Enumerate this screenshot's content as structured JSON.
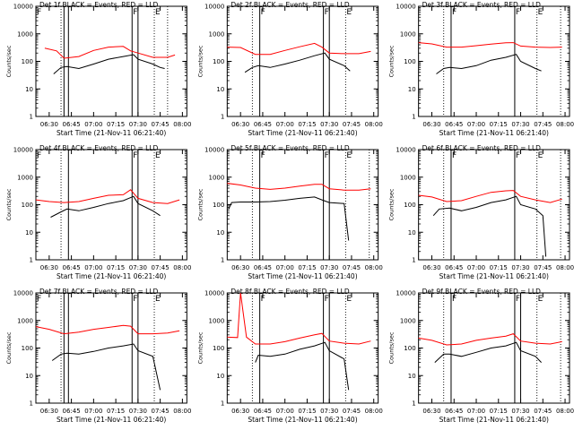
{
  "chart_data": [
    {
      "type": "line",
      "title": "Det 1f BLACK = Events, RED = LLD",
      "xlabel": "Start Time (21-Nov-11 06:21:40)",
      "ylabel": "Counts/sec",
      "xticks": [
        "06:30",
        "06:45",
        "07:00",
        "07:15",
        "07:30",
        "07:45",
        "08:00"
      ],
      "yticks": [
        "1",
        "10",
        "100",
        "1000",
        "10000"
      ],
      "ylim": [
        1,
        10000
      ],
      "yscale": "log",
      "vlines_solid": [
        "06:40",
        "06:43",
        "07:26",
        "07:30"
      ],
      "vlines_dotted": [
        "06:38",
        "07:41",
        "07:50"
      ],
      "markers": [
        {
          "label": "F",
          "time": "06:21"
        },
        {
          "label": "F",
          "time": "07:26"
        },
        {
          "label": "E",
          "time": "07:41"
        }
      ],
      "series": [
        {
          "color": "#ff0000",
          "x": [
            "06:27",
            "06:35",
            "06:40",
            "06:50",
            "07:00",
            "07:10",
            "07:20",
            "07:25",
            "07:30",
            "07:40",
            "07:50",
            "07:55"
          ],
          "values": [
            300,
            240,
            130,
            150,
            250,
            330,
            350,
            240,
            200,
            140,
            140,
            170
          ]
        },
        {
          "color": "#000000",
          "x": [
            "06:33",
            "06:38",
            "06:42",
            "06:50",
            "07:00",
            "07:10",
            "07:20",
            "07:27",
            "07:30",
            "07:40",
            "07:45",
            "07:48"
          ],
          "values": [
            35,
            60,
            65,
            55,
            80,
            120,
            150,
            175,
            120,
            80,
            60,
            55
          ]
        }
      ]
    },
    {
      "type": "line",
      "title": "Det 2f BLACK = Events, RED = LLD",
      "xlabel": "Start Time (21-Nov-11 06:21:40)",
      "ylabel": "Counts/sec",
      "xticks": [
        "06:30",
        "06:45",
        "07:00",
        "07:15",
        "07:30",
        "07:45",
        "08:00"
      ],
      "yticks": [
        "1",
        "10",
        "100",
        "1000",
        "10000"
      ],
      "ylim": [
        1,
        10000
      ],
      "yscale": "log",
      "vlines_solid": [
        "06:43",
        "07:26",
        "07:30"
      ],
      "vlines_dotted": [
        "06:38",
        "07:41"
      ],
      "markers": [
        {
          "label": "F",
          "time": "06:43"
        },
        {
          "label": "F",
          "time": "07:26"
        },
        {
          "label": "E",
          "time": "07:41"
        }
      ],
      "series": [
        {
          "color": "#ff0000",
          "x": [
            "06:21",
            "06:30",
            "06:40",
            "06:50",
            "07:00",
            "07:10",
            "07:20",
            "07:25",
            "07:30",
            "07:40",
            "07:50",
            "07:58"
          ],
          "values": [
            330,
            320,
            180,
            180,
            250,
            340,
            450,
            330,
            200,
            190,
            190,
            230
          ]
        },
        {
          "color": "#000000",
          "x": [
            "06:33",
            "06:38",
            "06:42",
            "06:50",
            "07:00",
            "07:10",
            "07:20",
            "07:27",
            "07:30",
            "07:40",
            "07:44"
          ],
          "values": [
            40,
            60,
            70,
            60,
            80,
            110,
            160,
            200,
            120,
            70,
            45
          ]
        }
      ]
    },
    {
      "type": "line",
      "title": "Det 3f BLACK = Events, RED = LLD",
      "xlabel": "Start Time (21-Nov-11 06:21:40)",
      "ylabel": "Counts/sec",
      "xticks": [
        "06:30",
        "06:45",
        "07:00",
        "07:15",
        "07:30",
        "07:45",
        "08:00"
      ],
      "yticks": [
        "1",
        "10",
        "100",
        "1000",
        "10000"
      ],
      "ylim": [
        1,
        10000
      ],
      "yscale": "log",
      "vlines_solid": [
        "06:43",
        "07:26"
      ],
      "vlines_dotted": [
        "06:38",
        "07:41",
        "07:57"
      ],
      "markers": [
        {
          "label": "F",
          "time": "06:43"
        },
        {
          "label": "F",
          "time": "07:26"
        },
        {
          "label": "E",
          "time": "07:41"
        }
      ],
      "series": [
        {
          "color": "#ff0000",
          "x": [
            "06:21",
            "06:30",
            "06:40",
            "06:50",
            "07:00",
            "07:10",
            "07:20",
            "07:25",
            "07:30",
            "07:40",
            "07:50",
            "07:58"
          ],
          "values": [
            480,
            430,
            330,
            330,
            370,
            420,
            470,
            480,
            360,
            330,
            320,
            330
          ]
        },
        {
          "color": "#000000",
          "x": [
            "06:33",
            "06:38",
            "06:42",
            "06:50",
            "07:00",
            "07:10",
            "07:20",
            "07:27",
            "07:30",
            "07:40",
            "07:44"
          ],
          "values": [
            35,
            55,
            60,
            55,
            70,
            110,
            140,
            180,
            100,
            55,
            45
          ]
        }
      ]
    },
    {
      "type": "line",
      "title": "Det 4f BLACK = Events, RED = LLD",
      "xlabel": "Start Time (21-Nov-11 06:21:40)",
      "ylabel": "Counts/sec",
      "xticks": [
        "06:30",
        "06:45",
        "07:00",
        "07:15",
        "07:30",
        "07:45",
        "08:00"
      ],
      "yticks": [
        "1",
        "10",
        "100",
        "1000",
        "10000"
      ],
      "ylim": [
        1,
        10000
      ],
      "yscale": "log",
      "vlines_solid": [
        "06:43",
        "07:26",
        "07:30"
      ],
      "vlines_dotted": [
        "06:38",
        "07:41"
      ],
      "markers": [
        {
          "label": "F",
          "time": "06:21"
        },
        {
          "label": "F",
          "time": "07:26"
        },
        {
          "label": "E",
          "time": "07:41"
        }
      ],
      "series": [
        {
          "color": "#ff0000",
          "x": [
            "06:21",
            "06:30",
            "06:40",
            "06:50",
            "07:00",
            "07:10",
            "07:20",
            "07:25",
            "07:30",
            "07:40",
            "07:50",
            "07:58"
          ],
          "values": [
            150,
            130,
            120,
            130,
            170,
            220,
            230,
            350,
            170,
            120,
            110,
            150
          ]
        },
        {
          "color": "#000000",
          "x": [
            "06:31",
            "06:38",
            "06:42",
            "06:50",
            "07:00",
            "07:10",
            "07:20",
            "07:27",
            "07:30",
            "07:40",
            "07:45"
          ],
          "values": [
            35,
            55,
            70,
            60,
            80,
            110,
            140,
            200,
            110,
            60,
            40
          ]
        }
      ]
    },
    {
      "type": "line",
      "title": "Det 5f BLACK = Events, RED = LLD",
      "xlabel": "Start Time (21-Nov-11 06:21:40)",
      "ylabel": "Counts/sec",
      "xticks": [
        "06:30",
        "06:45",
        "07:00",
        "07:15",
        "07:30",
        "07:45",
        "08:00"
      ],
      "yticks": [
        "1",
        "10",
        "100",
        "1000",
        "10000"
      ],
      "ylim": [
        1,
        10000
      ],
      "yscale": "log",
      "vlines_solid": [
        "06:43",
        "07:26",
        "07:30"
      ],
      "vlines_dotted": [
        "06:38",
        "07:41",
        "07:57"
      ],
      "markers": [
        {
          "label": "F",
          "time": "06:43"
        },
        {
          "label": "F",
          "time": "07:26"
        },
        {
          "label": "E",
          "time": "07:41"
        }
      ],
      "series": [
        {
          "color": "#ff0000",
          "x": [
            "06:21",
            "06:30",
            "06:40",
            "06:50",
            "07:00",
            "07:10",
            "07:20",
            "07:25",
            "07:30",
            "07:40",
            "07:50",
            "07:58"
          ],
          "values": [
            600,
            520,
            400,
            360,
            400,
            470,
            550,
            550,
            380,
            340,
            340,
            380
          ]
        },
        {
          "color": "#000000",
          "x": [
            "06:22",
            "06:24",
            "06:30",
            "06:40",
            "06:50",
            "07:00",
            "07:10",
            "07:20",
            "07:25",
            "07:30",
            "07:40",
            "07:43"
          ],
          "values": [
            70,
            120,
            125,
            125,
            130,
            145,
            170,
            190,
            150,
            120,
            110,
            5
          ]
        }
      ]
    },
    {
      "type": "line",
      "title": "Det 6f BLACK = Events, RED = LLD",
      "xlabel": "Start Time (21-Nov-11 06:21:40)",
      "ylabel": "Counts/sec",
      "xticks": [
        "06:30",
        "06:45",
        "07:00",
        "07:15",
        "07:30",
        "07:45",
        "08:00"
      ],
      "yticks": [
        "1",
        "10",
        "100",
        "1000",
        "10000"
      ],
      "ylim": [
        1,
        10000
      ],
      "yscale": "log",
      "vlines_solid": [
        "06:43",
        "07:26"
      ],
      "vlines_dotted": [
        "06:38",
        "07:41",
        "07:57"
      ],
      "markers": [
        {
          "label": "F",
          "time": "06:43"
        },
        {
          "label": "F",
          "time": "07:26"
        },
        {
          "label": "E",
          "time": "07:41"
        }
      ],
      "series": [
        {
          "color": "#ff0000",
          "x": [
            "06:21",
            "06:30",
            "06:40",
            "06:50",
            "07:00",
            "07:10",
            "07:20",
            "07:25",
            "07:30",
            "07:40",
            "07:50",
            "07:58"
          ],
          "values": [
            220,
            190,
            130,
            140,
            200,
            280,
            320,
            330,
            200,
            150,
            120,
            160
          ]
        },
        {
          "color": "#000000",
          "x": [
            "06:31",
            "06:35",
            "06:42",
            "06:50",
            "07:00",
            "07:10",
            "07:20",
            "07:27",
            "07:30",
            "07:40",
            "07:45",
            "07:47"
          ],
          "values": [
            40,
            70,
            75,
            60,
            80,
            120,
            150,
            200,
            100,
            70,
            40,
            1.3
          ]
        }
      ]
    },
    {
      "type": "line",
      "title": "Det 7f BLACK = Events, RED = LLD",
      "xlabel": "Start Time (21-Nov-11 06:21:40)",
      "ylabel": "Counts/sec",
      "xticks": [
        "06:30",
        "06:45",
        "07:00",
        "07:15",
        "07:30",
        "07:45",
        "08:00"
      ],
      "yticks": [
        "1",
        "10",
        "100",
        "1000",
        "10000"
      ],
      "ylim": [
        1,
        10000
      ],
      "yscale": "log",
      "vlines_solid": [
        "06:40",
        "06:43",
        "07:26",
        "07:30"
      ],
      "vlines_dotted": [
        "06:38",
        "07:41"
      ],
      "markers": [
        {
          "label": "F",
          "time": "06:21"
        },
        {
          "label": "F",
          "time": "07:26"
        },
        {
          "label": "E",
          "time": "07:41"
        }
      ],
      "series": [
        {
          "color": "#ff0000",
          "x": [
            "06:21",
            "06:30",
            "06:40",
            "06:50",
            "07:00",
            "07:10",
            "07:20",
            "07:25",
            "07:30",
            "07:40",
            "07:50",
            "07:58"
          ],
          "values": [
            600,
            480,
            330,
            380,
            480,
            560,
            660,
            620,
            330,
            330,
            350,
            420
          ]
        },
        {
          "color": "#000000",
          "x": [
            "06:32",
            "06:38",
            "06:42",
            "06:50",
            "07:00",
            "07:10",
            "07:20",
            "07:27",
            "07:30",
            "07:40",
            "07:45"
          ],
          "values": [
            35,
            60,
            65,
            60,
            75,
            100,
            120,
            140,
            80,
            50,
            3
          ]
        }
      ]
    },
    {
      "type": "line",
      "title": "Det 8f BLACK = Events, RED = LLD",
      "xlabel": "Start Time (21-Nov-11 06:21:40)",
      "ylabel": "Counts/sec",
      "xticks": [
        "06:30",
        "06:45",
        "07:00",
        "07:15",
        "07:30",
        "07:45",
        "08:00"
      ],
      "yticks": [
        "1",
        "10",
        "100",
        "1000",
        "10000"
      ],
      "ylim": [
        1,
        10000
      ],
      "yscale": "log",
      "vlines_solid": [
        "06:43",
        "07:26",
        "07:30"
      ],
      "vlines_dotted": [
        "06:38",
        "07:41"
      ],
      "markers": [
        {
          "label": "F",
          "time": "06:43"
        },
        {
          "label": "F",
          "time": "07:26"
        },
        {
          "label": "E",
          "time": "07:41"
        }
      ],
      "series": [
        {
          "color": "#ff0000",
          "x": [
            "06:21",
            "06:28",
            "06:30",
            "06:34",
            "06:40",
            "06:50",
            "07:00",
            "07:10",
            "07:20",
            "07:25",
            "07:30",
            "07:40",
            "07:50",
            "07:58"
          ],
          "values": [
            250,
            240,
            10000,
            250,
            140,
            140,
            170,
            230,
            300,
            340,
            180,
            150,
            140,
            180
          ]
        },
        {
          "color": "#000000",
          "x": [
            "06:40",
            "06:42",
            "06:50",
            "07:00",
            "07:10",
            "07:20",
            "07:27",
            "07:30",
            "07:40",
            "07:43"
          ],
          "values": [
            30,
            55,
            50,
            60,
            90,
            120,
            160,
            80,
            40,
            3
          ]
        }
      ]
    },
    {
      "type": "line",
      "title": "Det 9f BLACK = Events, RED = LLD",
      "xlabel": "Start Time (21-Nov-11 06:21:40)",
      "ylabel": "Counts/sec",
      "xticks": [
        "06:30",
        "06:45",
        "07:00",
        "07:15",
        "07:30",
        "07:45",
        "08:00"
      ],
      "yticks": [
        "1",
        "10",
        "100",
        "1000",
        "10000"
      ],
      "ylim": [
        1,
        10000
      ],
      "yscale": "log",
      "vlines_solid": [
        "06:43",
        "07:26",
        "07:30"
      ],
      "vlines_dotted": [
        "06:38",
        "07:41",
        "07:57"
      ],
      "markers": [
        {
          "label": "F",
          "time": "06:43"
        },
        {
          "label": "F",
          "time": "07:26"
        },
        {
          "label": "E",
          "time": "07:41"
        }
      ],
      "series": [
        {
          "color": "#ff0000",
          "x": [
            "06:21",
            "06:30",
            "06:40",
            "06:50",
            "07:00",
            "07:10",
            "07:20",
            "07:25",
            "07:30",
            "07:40",
            "07:50",
            "07:58"
          ],
          "values": [
            230,
            190,
            130,
            140,
            190,
            230,
            270,
            330,
            180,
            150,
            140,
            170
          ]
        },
        {
          "color": "#000000",
          "x": [
            "06:32",
            "06:38",
            "06:42",
            "06:50",
            "07:00",
            "07:10",
            "07:20",
            "07:27",
            "07:30",
            "07:40",
            "07:44"
          ],
          "values": [
            30,
            60,
            60,
            50,
            70,
            100,
            120,
            160,
            80,
            50,
            30
          ]
        }
      ]
    }
  ]
}
